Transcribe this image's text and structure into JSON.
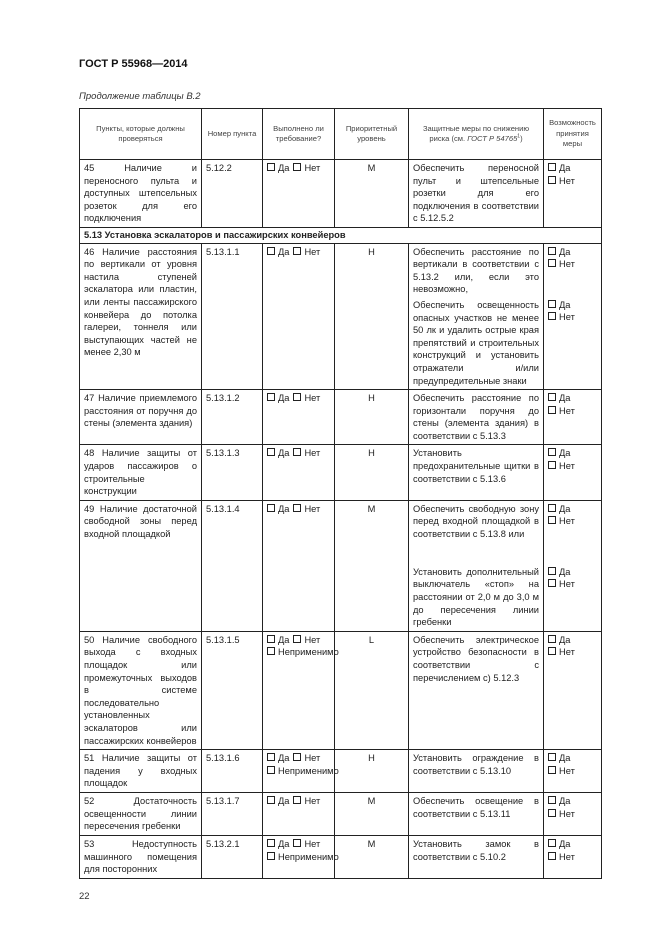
{
  "header": {
    "doc_code": "ГОСТ Р 55968—2014",
    "caption": "Продолжение таблицы В.2"
  },
  "columns": {
    "item": "Пункты, которые должны проверяться",
    "number": "Номер пункта",
    "done": "Выполнено ли требование?",
    "priority": "Приоритетный уровень",
    "measures_pre": "Защитные меры по снижению риска (см. ",
    "measures_ref": "ГОСТ Р 54765",
    "measures_sup": "1",
    "measures_post": ")",
    "possible": "Возможность принятия меры"
  },
  "checkbox_labels": {
    "yes": "Да",
    "no": "Нет",
    "na": "Неприменимо"
  },
  "rows": [
    {
      "type": "row",
      "item": "45 Наличие и переносного пульта и доступных штепсельных розеток для его подключения",
      "number": "5.12.2",
      "options": [
        "yes",
        "no"
      ],
      "priority": "M",
      "measures": [
        "Обеспечить переносной пульт и штепсельные розетки для его подключения в соответствии с 5.12.5.2"
      ]
    },
    {
      "type": "section",
      "title": "5.13 Установка эскалаторов и пассажирских конвейеров"
    },
    {
      "type": "row",
      "item": "46 Наличие расстояния по вертикали от уровня настила ступеней эскалатора или пластин, или ленты пассажирского конвейера до потолка галереи, тоннеля или выступающих частей не менее 2,30 м",
      "number": "5.13.1.1",
      "options": [
        "yes",
        "no"
      ],
      "priority": "H",
      "measures": [
        "Обеспечить расстояние по вертикали в соответствии с 5.13.2 или, если это невозможно,",
        "Обеспечить освещенность опасных участков не менее 50 лк и удалить острые края препятствий и строительных конструкций и установить отражатели и/или предупредительные знаки"
      ]
    },
    {
      "type": "row",
      "item": "47 Наличие приемлемого расстояния от поручня до стены (элемента здания)",
      "number": "5.13.1.2",
      "options": [
        "yes",
        "no"
      ],
      "priority": "H",
      "measures": [
        "Обеспечить расстояние по горизонтали поручня до стены (элемента здания) в соответствии с 5.13.3"
      ]
    },
    {
      "type": "row",
      "item": "48 Наличие защиты от ударов пассажиров о строительные конструкции",
      "number": "5.13.1.3",
      "options": [
        "yes",
        "no"
      ],
      "priority": "H",
      "measures": [
        "Установить предохранительные щитки в соответствии с 5.13.6"
      ]
    },
    {
      "type": "row",
      "item": "49 Наличие достаточной свободной зоны перед входной площадкой",
      "number": "5.13.1.4",
      "options": [
        "yes",
        "no"
      ],
      "priority": "M",
      "measures": [
        "Обеспечить свободную зону перед входной площадкой в соответствии с 5.13.8 или",
        "Установить дополнительный выключатель «стоп» на расстоянии от 2,0 м до 3,0 м до пересечения линии гребенки"
      ]
    },
    {
      "type": "row",
      "item": "50 Наличие свободного выхода с входных площадок или промежуточных выходов в системе последовательно установленных эскалаторов или пассажирских конвейеров",
      "number": "5.13.1.5",
      "options": [
        "yes",
        "no",
        "na"
      ],
      "priority": "L",
      "measures": [
        "Обеспечить электрическое устройство безопасности в соответствии с перечислением с) 5.12.3"
      ]
    },
    {
      "type": "row",
      "item": "51 Наличие защиты от падения у входных площадок",
      "number": "5.13.1.6",
      "options": [
        "yes",
        "no",
        "na"
      ],
      "priority": "H",
      "measures": [
        "Установить ограждение в соответствии с 5.13.10"
      ]
    },
    {
      "type": "row",
      "item": "52 Достаточность освещенности линии пересечения гребенки",
      "number": "5.13.1.7",
      "options": [
        "yes",
        "no"
      ],
      "priority": "M",
      "measures": [
        "Обеспечить освещение в соответствии с 5.13.11"
      ]
    },
    {
      "type": "row",
      "item": "53 Недоступность машинного помещения для посторонних",
      "number": "5.13.2.1",
      "options": [
        "yes",
        "no",
        "na"
      ],
      "priority": "M",
      "measures": [
        "Установить замок в соответствии с 5.10.2"
      ]
    }
  ],
  "footer": {
    "page_number": "22"
  }
}
